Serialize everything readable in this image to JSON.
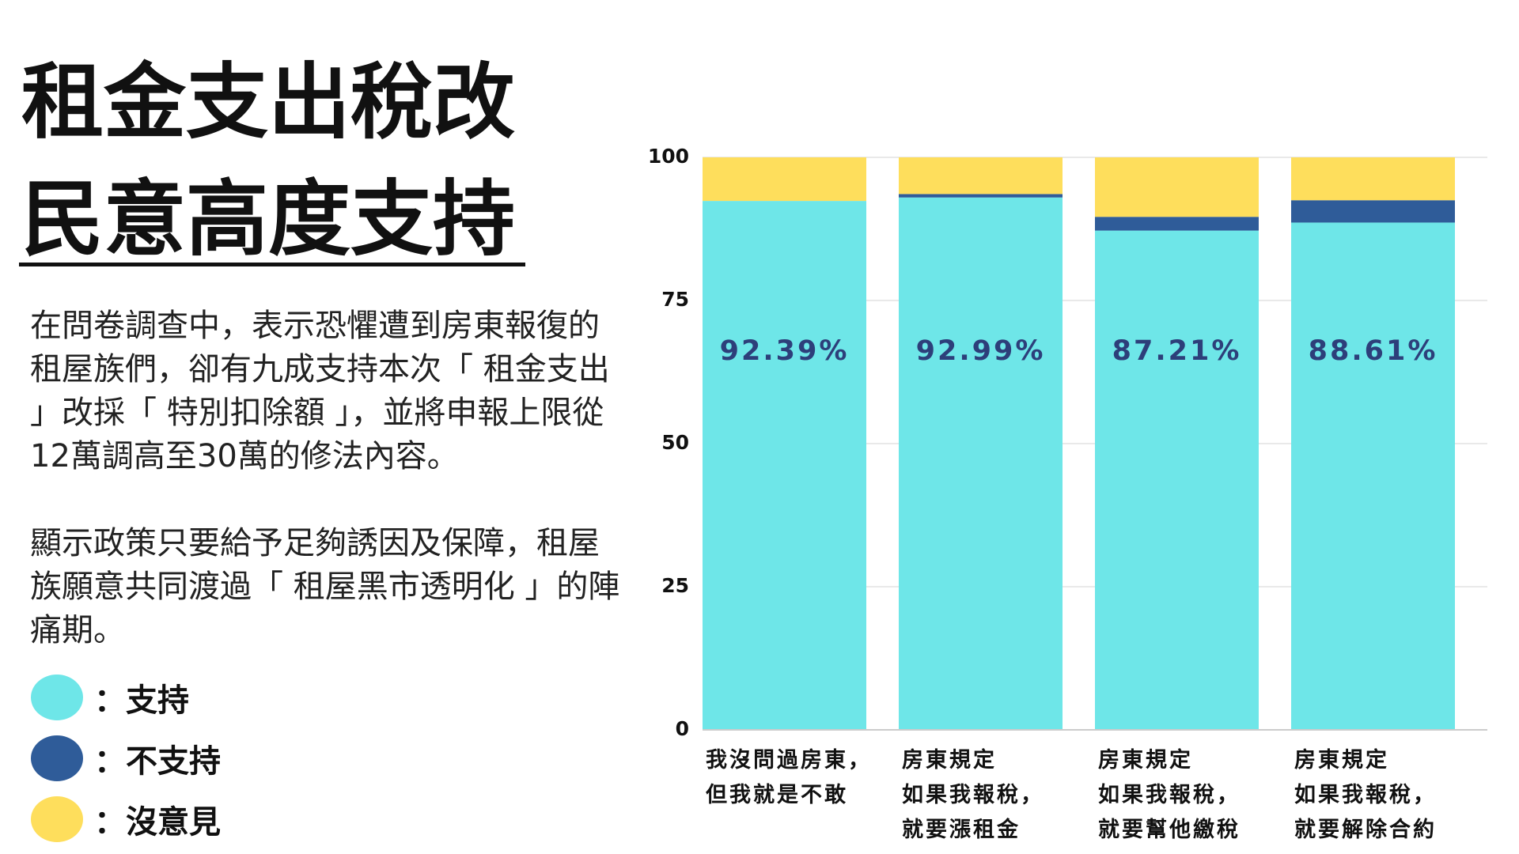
{
  "chart_data": {
    "type": "stacked_bar",
    "title": "租金支出稅改\n民意高度支持",
    "paragraphs": [
      "在問卷調查中，表示恐懼遭到房東報復的租屋族們，卻有九成支持本次「 租金支出 」改採「 特別扣除額 」，並將申報上限從12萬調高至30萬的修法內容。",
      "顯示政策只要給予足夠誘因及保障，租屋族願意共同渡過「 租屋黑市透明化 」的陣痛期。"
    ],
    "categories": [
      "我沒問過房東，\n但我就是不敢",
      "房東規定\n如果我報稅，\n就要漲租金",
      "房東規定\n如果我報稅，\n就要幫他繳稅",
      "房東規定\n如果我報稅，\n就要解除合約"
    ],
    "series": [
      {
        "name": "支持",
        "color": "#6ee6e8",
        "values": [
          92.39,
          92.99,
          87.21,
          88.61
        ],
        "value_labels": [
          "92.39%",
          "92.99%",
          "87.21%",
          "88.61%"
        ]
      },
      {
        "name": "不支持",
        "color": "#2f5c99",
        "values": [
          0,
          0.6,
          2.4,
          3.9
        ]
      },
      {
        "name": "沒意見",
        "color": "#fede5c",
        "values": [
          7.61,
          6.41,
          10.39,
          7.49
        ]
      }
    ],
    "ylim": [
      0,
      100
    ],
    "yticks": [
      0,
      25,
      50,
      75,
      100
    ],
    "grid": true
  }
}
